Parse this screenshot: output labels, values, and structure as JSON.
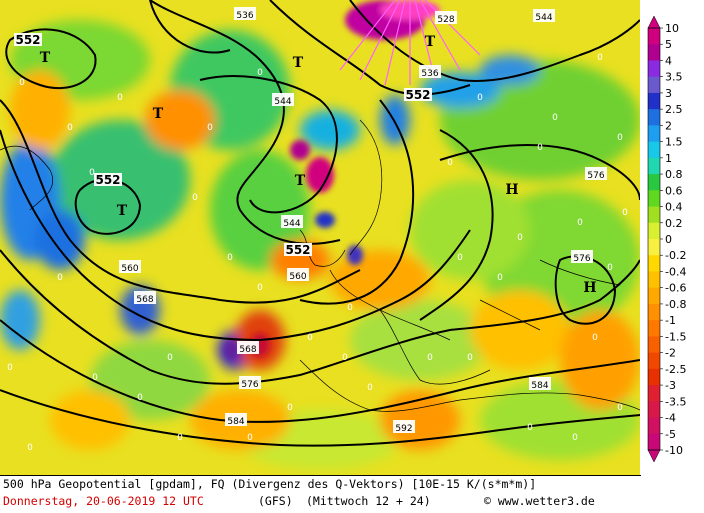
{
  "map": {
    "centers": [
      {
        "letter": "T",
        "kind": "low"
      },
      {
        "letter": "T",
        "kind": "low"
      },
      {
        "letter": "T",
        "kind": "low"
      },
      {
        "letter": "T",
        "kind": "low"
      },
      {
        "letter": "T",
        "kind": "low"
      },
      {
        "letter": "H",
        "kind": "high"
      },
      {
        "letter": "H",
        "kind": "high"
      }
    ],
    "isoline_labels": [
      "552",
      "552",
      "552",
      "552",
      "544",
      "544",
      "544",
      "536",
      "536",
      "528",
      "560",
      "560",
      "568",
      "568",
      "576",
      "576",
      "576",
      "584",
      "584",
      "592"
    ],
    "zero_marks": [
      "0",
      "0",
      "0",
      "0",
      "0",
      "0",
      "0",
      "0",
      "0",
      "0",
      "0",
      "0",
      "0",
      "0",
      "0",
      "0",
      "0",
      "0",
      "0",
      "0",
      "0",
      "0",
      "0",
      "0",
      "0",
      "0",
      "0",
      "0",
      "0",
      "0",
      "0",
      "0",
      "0",
      "0",
      "0",
      "0",
      "0",
      "0",
      "0",
      "0"
    ]
  },
  "legend": {
    "labels": [
      "10",
      "5",
      "4",
      "3.5",
      "3",
      "2.5",
      "2",
      "1.5",
      "1",
      "0.8",
      "0.6",
      "0.4",
      "0.2",
      "0",
      "-0.2",
      "-0.4",
      "-0.6",
      "-0.8",
      "-1",
      "-1.5",
      "-2",
      "-2.5",
      "-3",
      "-3.5",
      "-4",
      "-5",
      "-10"
    ],
    "colors": [
      "#d0007e",
      "#b00090",
      "#8a2be2",
      "#6a5acd",
      "#2030c8",
      "#1e70e0",
      "#1e9ef0",
      "#18c8e8",
      "#20d8b0",
      "#28c840",
      "#60d820",
      "#a0e020",
      "#d8f030",
      "#f8f040",
      "#ffd800",
      "#ffc000",
      "#ffa800",
      "#ff9000",
      "#ff7800",
      "#f86000",
      "#f04800",
      "#e83000",
      "#e02030",
      "#d81848",
      "#d01060",
      "#c80878"
    ]
  },
  "footer": {
    "line1": "500 hPa Geopotential [gpdam], FQ (Divergenz des Q-Vektors) [10E-15 K/(s*m*m)]",
    "date": "Donnerstag, 20-06-2019  12 UTC",
    "model": "(GFS)",
    "run": "(Mittwoch 12 + 24)",
    "credit": "© www.wetter3.de"
  }
}
